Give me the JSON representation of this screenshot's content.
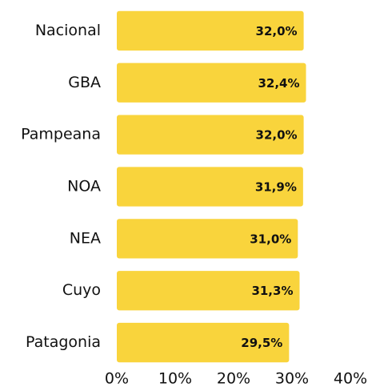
{
  "chart_data": {
    "type": "bar",
    "orientation": "horizontal",
    "categories": [
      "Nacional",
      "GBA",
      "Pampeana",
      "NOA",
      "NEA",
      "Cuyo",
      "Patagonia"
    ],
    "values": [
      32.0,
      32.4,
      32.0,
      31.9,
      31.0,
      31.3,
      29.5
    ],
    "value_labels": [
      "32,0%",
      "32,4%",
      "32,0%",
      "31,9%",
      "31,0%",
      "31,3%",
      "29,5%"
    ],
    "color": "#f9d43c",
    "xlim": [
      0,
      40
    ],
    "xticks": [
      {
        "value": 0,
        "label": "0%"
      },
      {
        "value": 10,
        "label": "10%"
      },
      {
        "value": 20,
        "label": "20%"
      },
      {
        "value": 30,
        "label": "30%"
      },
      {
        "value": 40,
        "label": "40%"
      }
    ],
    "grid": false
  }
}
